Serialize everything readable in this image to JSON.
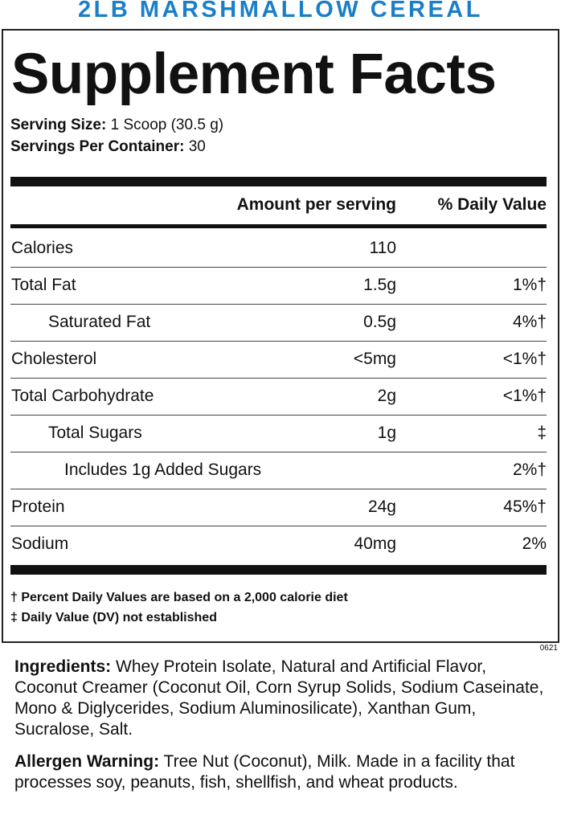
{
  "header": {
    "product": "2LB MARSHMALLOW CEREAL"
  },
  "panel": {
    "title": "Supplement Facts",
    "serving_size": {
      "label": "Serving Size:",
      "value": "1 Scoop (30.5 g)"
    },
    "servings_per_container": {
      "label": "Servings Per Container:",
      "value": "30"
    },
    "columns": {
      "amount": "Amount per serving",
      "daily_value": "% Daily Value"
    },
    "rows": [
      {
        "name": "Calories",
        "amount": "110"
      },
      {
        "name": "Total Fat",
        "amount": "1.5g",
        "daily_value": "1%†",
        "sub": [
          {
            "name": "Saturated Fat",
            "amount": "0.5g",
            "daily_value": "4%†"
          }
        ]
      },
      {
        "name": "Cholesterol",
        "amount": "<5mg",
        "daily_value": "<1%†"
      },
      {
        "name": "Total Carbohydrate",
        "amount": "2g",
        "daily_value": "<1%†",
        "sub": [
          {
            "name": "Total Sugars",
            "amount": "1g",
            "daily_value": "‡",
            "sub": [
              {
                "name": "Includes 1g Added Sugars",
                "daily_value": "2%†"
              }
            ]
          }
        ]
      },
      {
        "name": "Protein",
        "amount": "24g",
        "daily_value": "45%†"
      },
      {
        "name": "Sodium",
        "amount": "40mg",
        "daily_value": "2%"
      }
    ],
    "footnotes": [
      "† Percent Daily Values are based on a 2,000 calorie diet",
      "‡ Daily Value (DV) not established"
    ]
  },
  "code": "0621",
  "ingredients": {
    "label": "Ingredients:",
    "text": "Whey Protein Isolate, Natural and Artificial Flavor, Coconut Creamer (Coconut Oil, Corn Syrup Solids, Sodium Caseinate, Mono & Diglycerides, Sodium Aluminosilicate), Xanthan Gum, Sucralose, Salt."
  },
  "allergen": {
    "label": "Allergen Warning:",
    "text": "Tree Nut (Coconut), Milk. Made in a facility that processes soy, peanuts, fish, shellfish, and wheat products."
  }
}
